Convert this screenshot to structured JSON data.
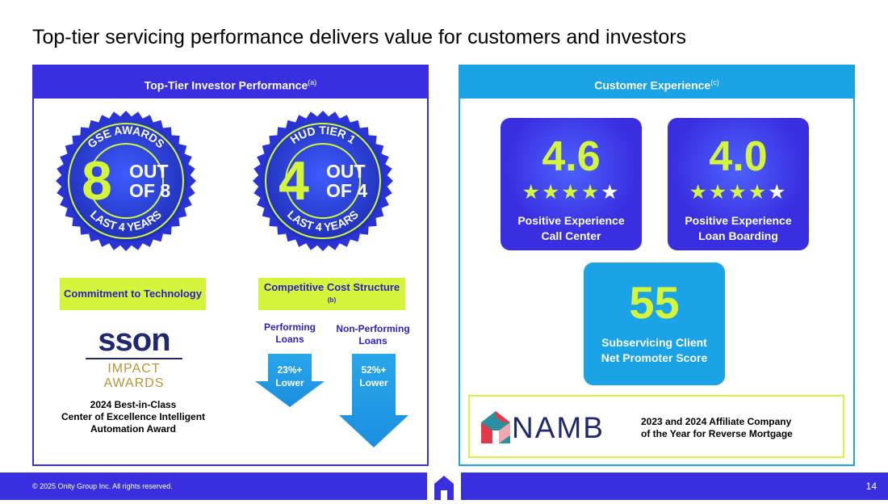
{
  "title": "Top-tier servicing performance delivers value for customers and investors",
  "left_panel": {
    "header": "Top-Tier Investor Performance",
    "header_note": "(a)",
    "gse_badge": {
      "top": "GSE AWARDS",
      "number": "8",
      "out": "OUT",
      "of": "OF 8",
      "bottom": "LAST 4 YEARS"
    },
    "hud_badge": {
      "top": "HUD TIER 1",
      "number": "4",
      "out": "OUT",
      "of": "OF 4",
      "bottom": "LAST 4 YEARS"
    },
    "tech_box": "Commitment to Technology",
    "cost_box": "Competitive Cost Structure",
    "cost_note": "(b)",
    "performing_label": "Performing Loans",
    "nonperforming_label": "Non-Performing Loans",
    "performing_value": "23%+",
    "performing_suffix": "Lower",
    "nonperforming_value": "52%+",
    "nonperforming_suffix": "Lower",
    "ssn_logo": "sson",
    "ssn_sub": "IMPACT AWARDS",
    "award_text_1": "2024 Best-in-Class",
    "award_text_2": "Center of Excellence Intelligent",
    "award_text_3": "Automation Award"
  },
  "right_panel": {
    "header": "Customer Experience",
    "header_note": "(c)",
    "cards": [
      {
        "score": "4.6",
        "label_1": "Positive Experience",
        "label_2": "Call Center"
      },
      {
        "score": "4.0",
        "label_1": "Positive Experience",
        "label_2": "Loan Boarding"
      },
      {
        "score": "55",
        "label_1": "Subservicing Client",
        "label_2": "Net Promoter Score"
      }
    ],
    "namb_logo": "NAMB",
    "namb_text_1": "2023 and 2024 Affiliate Company",
    "namb_text_2": "of the Year for Reverse Mortgage"
  },
  "footer": {
    "copyright": "© 2025 Onity Group Inc. All rights reserved.",
    "page": "14"
  },
  "colors": {
    "brand_blue": "#3a2fe0",
    "cyan": "#1ba3e8",
    "lime": "#d4f53c",
    "badge_dark": "#1f2fb8"
  }
}
